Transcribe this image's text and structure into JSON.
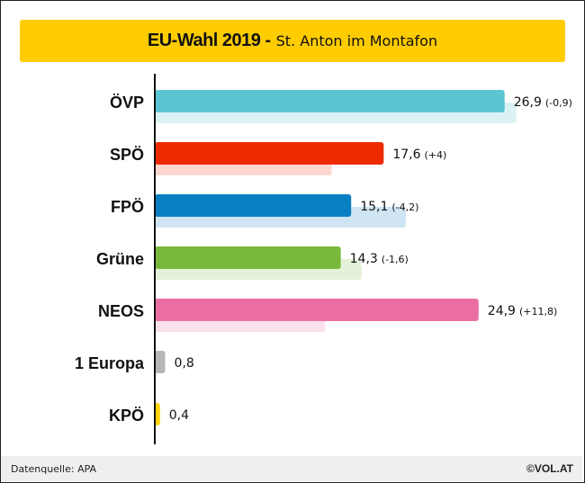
{
  "header": {
    "title": "EU-Wahl 2019 -",
    "subtitle": "St. Anton im Montafon"
  },
  "chart_data": {
    "type": "bar",
    "orientation": "horizontal",
    "categories": [
      "ÖVP",
      "SPÖ",
      "FPÖ",
      "Grüne",
      "NEOS",
      "1 Europa",
      "KPÖ"
    ],
    "series": [
      {
        "values": [
          26.9,
          17.6,
          15.1,
          14.3,
          24.9,
          0.8,
          0.4
        ]
      },
      {
        "values": [
          27.8,
          13.6,
          19.3,
          15.9,
          13.1,
          null,
          null
        ]
      }
    ],
    "value_labels": [
      "26,9",
      "17,6",
      "15,1",
      "14,3",
      "24,9",
      "0,8",
      "0,4"
    ],
    "change_labels": [
      "(-0,9)",
      "(+4)",
      "(-4,2)",
      "(-1,6)",
      "(+11,8)",
      "",
      ""
    ],
    "colors": [
      "#5bc5d3",
      "#ee2a00",
      "#0a7fc1",
      "#78b83c",
      "#eb6ea3",
      "#b7b7b7",
      "#ffd400"
    ],
    "previous_colors": [
      "#dbf2f5",
      "#fdd6d0",
      "#cfe5f3",
      "#e3f1d8",
      "#fbe1ec",
      "#eeeeee",
      "#fff7c2"
    ],
    "xlim": [
      0,
      30
    ]
  },
  "footer": {
    "source": "Datenquelle: APA",
    "brand": "©VOL.AT"
  }
}
